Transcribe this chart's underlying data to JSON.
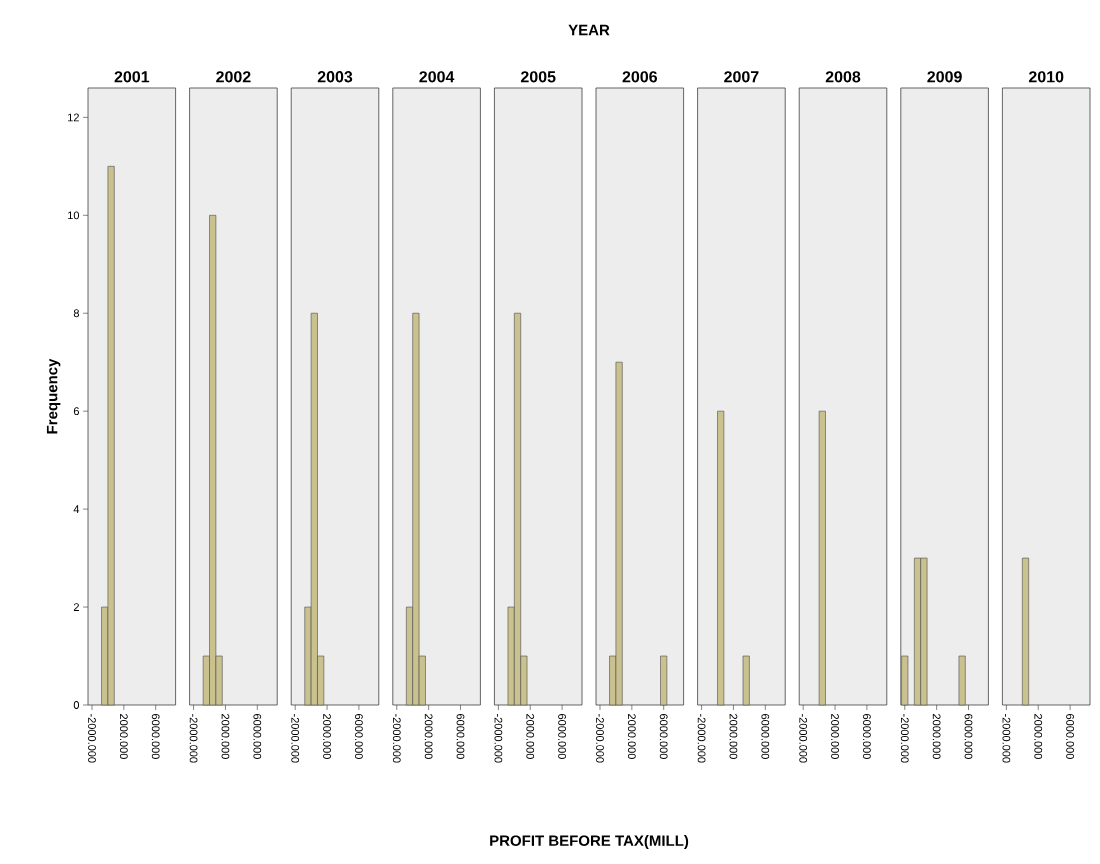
{
  "chart_data": [
    {
      "type": "histogram",
      "title": "2001",
      "ylabel": "Frequency",
      "color": "#c9c28f",
      "bins": [
        -2400,
        -1600,
        -800,
        0,
        800,
        1600,
        2400,
        3200,
        4000,
        4800,
        5600,
        6400
      ],
      "values": [
        0,
        0,
        2,
        11,
        0,
        0,
        0,
        0,
        0,
        0,
        0
      ],
      "xlim": [
        -2500,
        8500
      ],
      "ylim": [
        0,
        12.6
      ],
      "xticks": [
        {
          "value": -2000,
          "label": "-2000.000"
        },
        {
          "value": 2000,
          "label": "2000.000"
        },
        {
          "value": 6000,
          "label": "6000.000"
        }
      ],
      "yticks": [
        0,
        2,
        4,
        6,
        8,
        10,
        12
      ]
    },
    {
      "type": "histogram",
      "title": "2002",
      "color": "#c9c28f",
      "bins": [
        -2400,
        -1600,
        -800,
        0,
        800,
        1600,
        2400,
        3200,
        4000,
        4800,
        5600,
        6400
      ],
      "values": [
        0,
        0,
        1,
        10,
        1,
        0,
        0,
        0,
        0,
        0,
        0
      ],
      "xlim": [
        -2500,
        8500
      ],
      "ylim": [
        0,
        12.6
      ],
      "xticks": [
        {
          "value": -2000,
          "label": "-2000.000"
        },
        {
          "value": 2000,
          "label": "2000.000"
        },
        {
          "value": 6000,
          "label": "6000.000"
        }
      ],
      "tick_labels": "x"
    },
    {
      "type": "histogram",
      "title": "2003",
      "color": "#c9c28f",
      "bins": [
        -2400,
        -1600,
        -800,
        0,
        800,
        1600,
        2400,
        3200,
        4000,
        4800,
        5600,
        6400
      ],
      "values": [
        0,
        0,
        2,
        8,
        1,
        0,
        0,
        0,
        0,
        0,
        0
      ],
      "xlim": [
        -2500,
        8500
      ],
      "ylim": [
        0,
        12.6
      ],
      "xticks": [
        {
          "value": -2000,
          "label": "-2000.000"
        },
        {
          "value": 2000,
          "label": "2000.000"
        },
        {
          "value": 6000,
          "label": "6000.000"
        }
      ],
      "tick_labels": "x"
    },
    {
      "type": "histogram",
      "title": "2004",
      "color": "#c9c28f",
      "bins": [
        -2400,
        -1600,
        -800,
        0,
        800,
        1600,
        2400,
        3200,
        4000,
        4800,
        5600,
        6400
      ],
      "values": [
        0,
        0,
        2,
        8,
        1,
        0,
        0,
        0,
        0,
        0,
        0
      ],
      "xlim": [
        -2500,
        8500
      ],
      "ylim": [
        0,
        12.6
      ],
      "xticks": [
        {
          "value": -2000,
          "label": "-2000.000"
        },
        {
          "value": 2000,
          "label": "2000.000"
        },
        {
          "value": 6000,
          "label": "6000.000"
        }
      ],
      "tick_labels": "x"
    },
    {
      "type": "histogram",
      "title": "2005",
      "xlabel": "PROFIT BEFORE TAX(MILL)",
      "annotations": [
        "YEAR"
      ],
      "color": "#c9c28f",
      "bins": [
        -2400,
        -1600,
        -800,
        0,
        800,
        1600,
        2400,
        3200,
        4000,
        4800,
        5600,
        6400
      ],
      "values": [
        0,
        0,
        2,
        8,
        1,
        0,
        0,
        0,
        0,
        0,
        0
      ],
      "xlim": [
        -2500,
        8500
      ],
      "ylim": [
        0,
        12.6
      ],
      "xticks": [
        {
          "value": -2000,
          "label": "-2000.000"
        },
        {
          "value": 2000,
          "label": "2000.000"
        },
        {
          "value": 6000,
          "label": "6000.000"
        }
      ],
      "tick_labels": "x"
    },
    {
      "type": "histogram",
      "title": "2006",
      "color": "#c9c28f",
      "bins": [
        -2400,
        -1600,
        -800,
        0,
        800,
        1600,
        2400,
        3200,
        4000,
        4800,
        5600,
        6400
      ],
      "values": [
        0,
        0,
        1,
        7,
        0,
        0,
        0,
        0,
        0,
        0,
        1
      ],
      "xlim": [
        -2500,
        8500
      ],
      "ylim": [
        0,
        12.6
      ],
      "xticks": [
        {
          "value": -2000,
          "label": "-2000.000"
        },
        {
          "value": 2000,
          "label": "2000.000"
        },
        {
          "value": 6000,
          "label": "6000.000"
        }
      ],
      "tick_labels": "x"
    },
    {
      "type": "histogram",
      "title": "2007",
      "color": "#c9c28f",
      "bins": [
        -2400,
        -1600,
        -800,
        0,
        800,
        1600,
        2400,
        3200,
        4000,
        4800,
        5600,
        6400
      ],
      "values": [
        0,
        0,
        0,
        6,
        0,
        0,
        0,
        1,
        0,
        0,
        0
      ],
      "xlim": [
        -2500,
        8500
      ],
      "ylim": [
        0,
        12.6
      ],
      "xticks": [
        {
          "value": -2000,
          "label": "-2000.000"
        },
        {
          "value": 2000,
          "label": "2000.000"
        },
        {
          "value": 6000,
          "label": "6000.000"
        }
      ],
      "tick_labels": "x"
    },
    {
      "type": "histogram",
      "title": "2008",
      "color": "#c9c28f",
      "bins": [
        -2400,
        -1600,
        -800,
        0,
        800,
        1600,
        2400,
        3200,
        4000,
        4800,
        5600,
        6400
      ],
      "values": [
        0,
        0,
        0,
        6,
        0,
        0,
        0,
        0,
        0,
        0,
        0
      ],
      "xlim": [
        -2500,
        8500
      ],
      "ylim": [
        0,
        12.6
      ],
      "xticks": [
        {
          "value": -2000,
          "label": "-2000.000"
        },
        {
          "value": 2000,
          "label": "2000.000"
        },
        {
          "value": 6000,
          "label": "6000.000"
        }
      ],
      "tick_labels": "x"
    },
    {
      "type": "histogram",
      "title": "2009",
      "color": "#c9c28f",
      "bins": [
        -2400,
        -1600,
        -800,
        0,
        800,
        1600,
        2400,
        3200,
        4000,
        4800,
        5600,
        6400
      ],
      "values": [
        1,
        0,
        3,
        3,
        0,
        0,
        0,
        0,
        0,
        1,
        0
      ],
      "xlim": [
        -2500,
        8500
      ],
      "ylim": [
        0,
        12.6
      ],
      "xticks": [
        {
          "value": -2000,
          "label": "-2000.000"
        },
        {
          "value": 2000,
          "label": "2000.000"
        },
        {
          "value": 6000,
          "label": "6000.000"
        }
      ],
      "tick_labels": "x"
    },
    {
      "type": "histogram",
      "title": "2010",
      "color": "#c9c28f",
      "bins": [
        -2400,
        -1600,
        -800,
        0,
        800,
        1600,
        2400,
        3200,
        4000,
        4800,
        5600,
        6400
      ],
      "values": [
        0,
        0,
        0,
        3,
        0,
        0,
        0,
        0,
        0,
        0,
        0
      ],
      "xlim": [
        -2500,
        8500
      ],
      "ylim": [
        0,
        12.6
      ],
      "xticks": [
        {
          "value": -2000,
          "label": "-2000.000"
        },
        {
          "value": 2000,
          "label": "2000.000"
        },
        {
          "value": 6000,
          "label": "6000.000"
        }
      ],
      "tick_labels": "x"
    }
  ]
}
